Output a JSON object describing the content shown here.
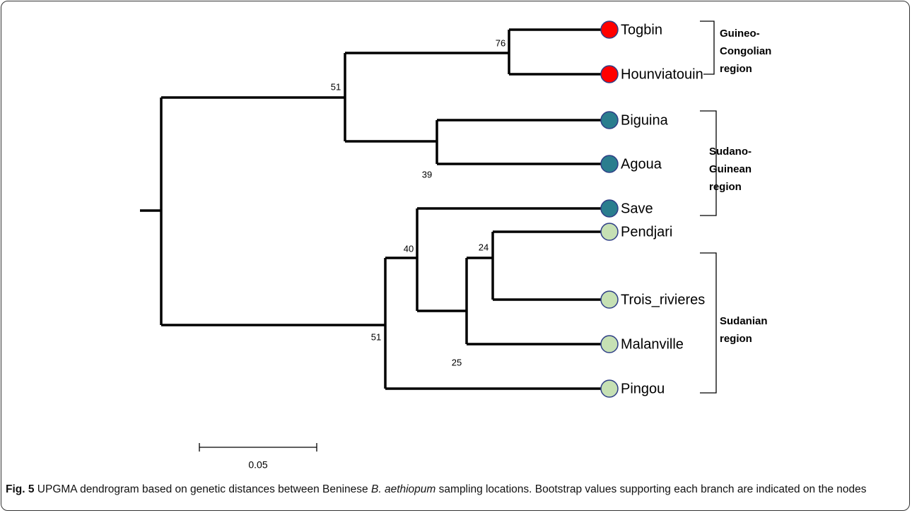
{
  "tree": {
    "leaves": [
      "Togbin",
      "Hounviatouin",
      "Biguina",
      "Agoua",
      "Save",
      "Pendjari",
      "Trois_rivieres",
      "Malanville",
      "Pingou"
    ],
    "bootstrap": [
      76,
      51,
      39,
      51,
      40,
      25,
      24
    ],
    "regions": [
      {
        "lines": [
          "Guineo-",
          "Congolian",
          "region"
        ]
      },
      {
        "lines": [
          "Sudano-",
          "Guinean",
          " region"
        ]
      },
      {
        "lines": [
          "Sudanian",
          "region"
        ]
      }
    ],
    "scale_label": "0.05"
  },
  "caption": {
    "label": "Fig. 5",
    "text_before": "UPGMA dendrogram based on genetic distances between Beninese",
    "italic": "B. aethiopum",
    "text_after": "sampling locations. Bootstrap values supporting each branch are indicated on the nodes"
  }
}
